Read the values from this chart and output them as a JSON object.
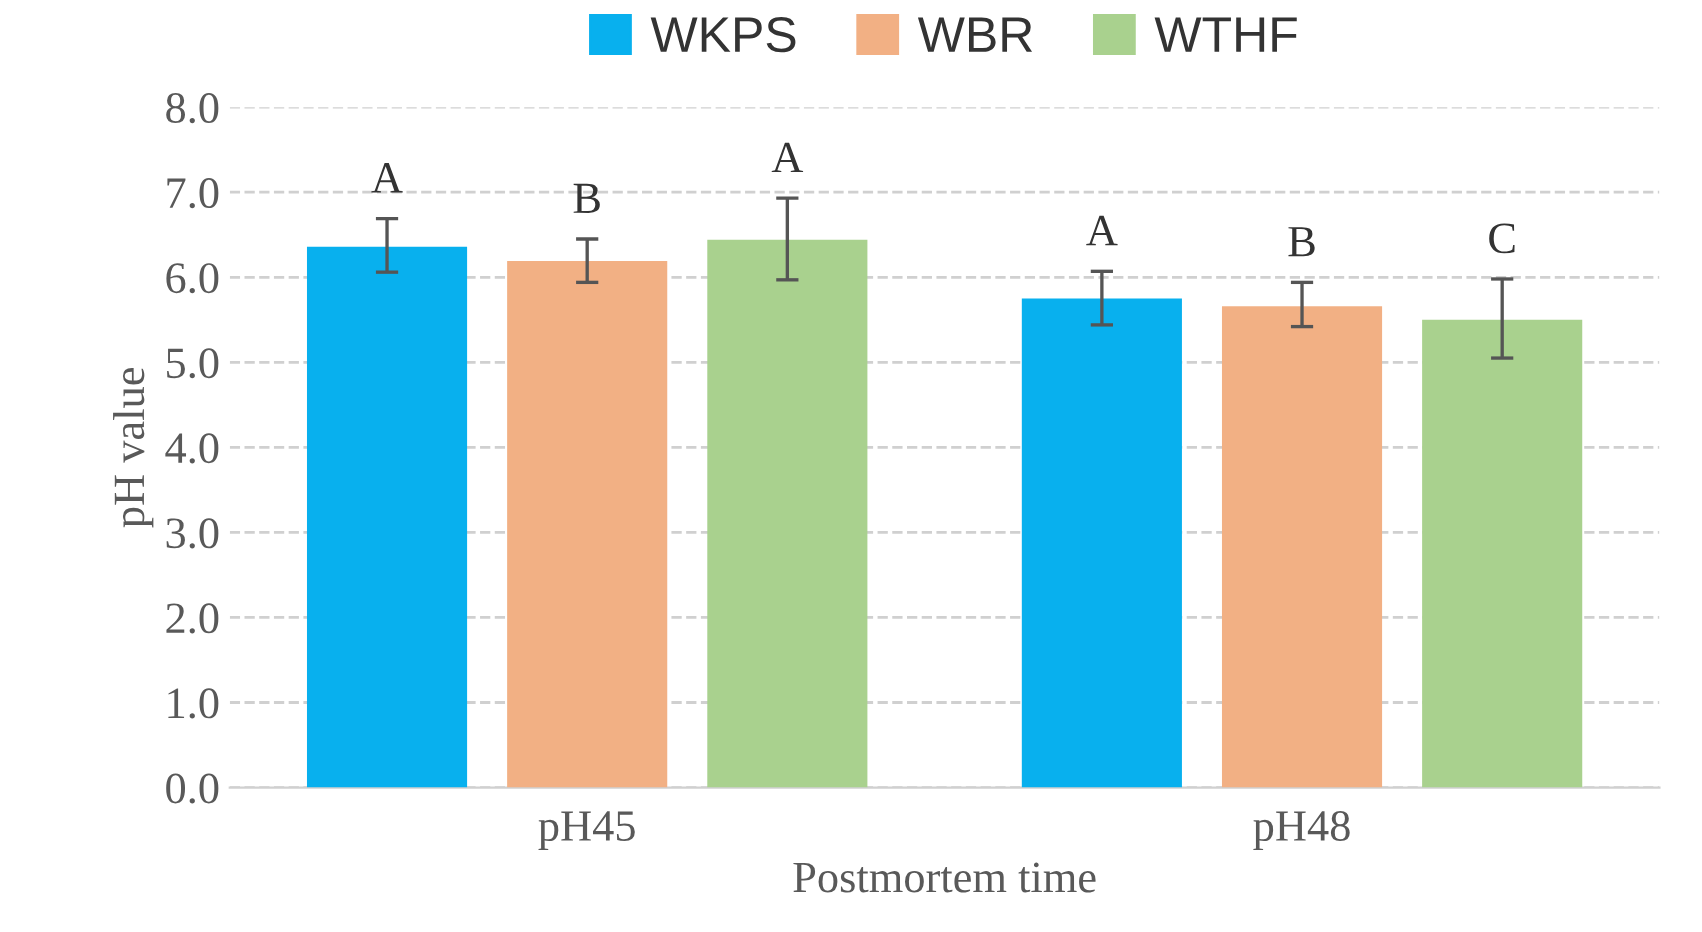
{
  "chart_data": {
    "type": "bar",
    "xlabel": "Postmortem time",
    "ylabel": "pH value",
    "categories": [
      "pH45",
      "pH48"
    ],
    "series": [
      {
        "name": "WKPS",
        "color": "#08b0ee",
        "values": [
          6.36,
          5.75
        ],
        "errors": [
          [
            6.06,
            6.69
          ],
          [
            5.44,
            6.07
          ]
        ],
        "value_labels": [
          "A",
          "A"
        ]
      },
      {
        "name": "WBR",
        "color": "#f2b084",
        "values": [
          6.19,
          5.66
        ],
        "errors": [
          [
            5.94,
            6.45
          ],
          [
            5.42,
            5.94
          ]
        ],
        "value_labels": [
          "B",
          "B"
        ]
      },
      {
        "name": "WTHF",
        "color": "#a9d18e",
        "values": [
          6.44,
          5.5
        ],
        "errors": [
          [
            5.97,
            6.93
          ],
          [
            5.05,
            5.98
          ]
        ],
        "value_labels": [
          "A",
          "C"
        ]
      }
    ],
    "ylim": [
      0,
      8
    ],
    "yticks": [
      {
        "value": 0,
        "label": "0.0"
      },
      {
        "value": 1,
        "label": "1.0"
      },
      {
        "value": 2,
        "label": "2.0"
      },
      {
        "value": 3,
        "label": "3.0"
      },
      {
        "value": 4,
        "label": "4.0"
      },
      {
        "value": 5,
        "label": "5.0"
      },
      {
        "value": 6,
        "label": "6.0"
      },
      {
        "value": 7,
        "label": "7.0"
      },
      {
        "value": 8,
        "label": "8.0"
      }
    ],
    "grid": "y",
    "legend": "top"
  }
}
